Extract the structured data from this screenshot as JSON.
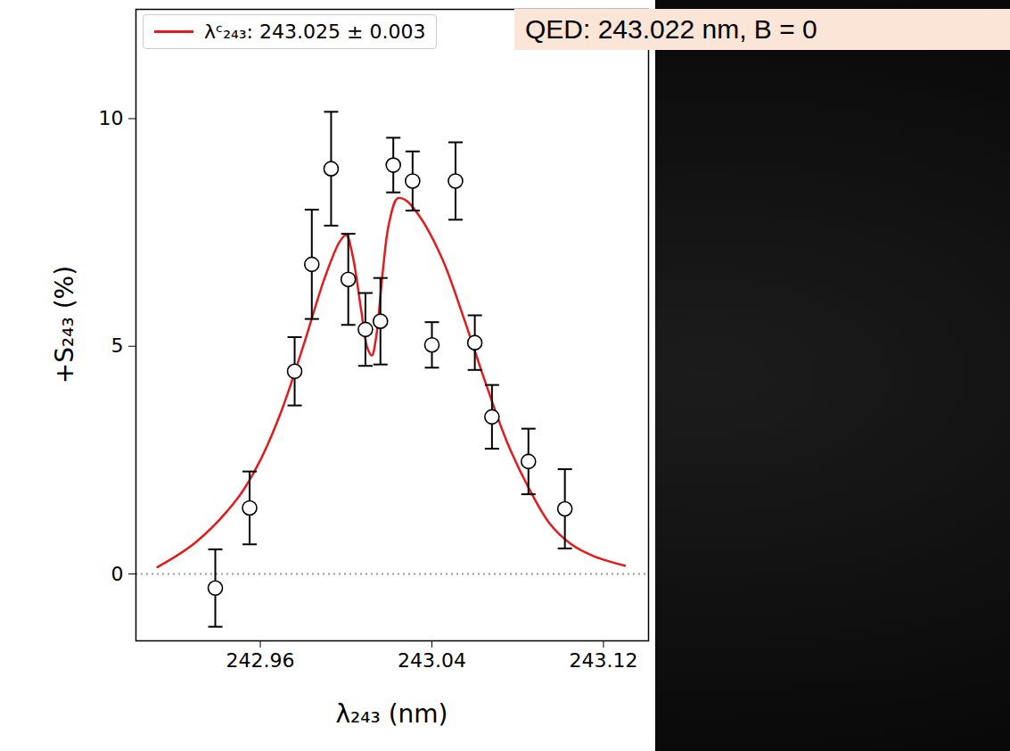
{
  "chart_data": {
    "type": "scatter",
    "x_label": "λ₂₄₃ (nm)",
    "y_label": "+S₂₄₃ (%)",
    "xlim": [
      242.902,
      243.141
    ],
    "ylim": [
      -1.47,
      12.4
    ],
    "xticks": [
      242.96,
      243.04,
      243.12
    ],
    "yticks": [
      0,
      5,
      10
    ],
    "legend": "upper left",
    "annotations": [
      {
        "text": "QED: 243.022 nm, B = 0"
      }
    ],
    "reference_line": {
      "y": 0,
      "color": "#999999",
      "line_style": "dotted"
    },
    "series": [
      {
        "name": "λᶜ₂₄₃: 243.025 ± 0.003",
        "type": "line",
        "color": "#e41a1c",
        "x": [
          242.912,
          242.93,
          242.95,
          242.96,
          242.97,
          242.98,
          242.99,
          242.997,
          243.0,
          243.003,
          243.007,
          243.01,
          243.012,
          243.014,
          243.017,
          243.02,
          243.024,
          243.028,
          243.035,
          243.045,
          243.055,
          243.065,
          243.075,
          243.085,
          243.095,
          243.105,
          243.115,
          243.13
        ],
        "values": [
          0.15,
          0.7,
          1.7,
          2.5,
          3.6,
          5.0,
          6.5,
          7.3,
          7.45,
          7.0,
          5.8,
          4.95,
          4.8,
          5.2,
          6.6,
          7.7,
          8.25,
          8.2,
          7.8,
          6.9,
          5.6,
          4.2,
          2.9,
          1.9,
          1.1,
          0.65,
          0.4,
          0.18
        ]
      },
      {
        "type": "scatter",
        "marker": "open_circle",
        "color": "#000000",
        "x": [
          242.939,
          242.955,
          242.976,
          242.984,
          242.993,
          243.001,
          243.009,
          243.016,
          243.022,
          243.031,
          243.04,
          243.051,
          243.06,
          243.068,
          243.085,
          243.102
        ],
        "values": [
          -0.31,
          1.45,
          4.45,
          6.8,
          8.9,
          6.47,
          5.37,
          5.55,
          8.98,
          8.63,
          5.03,
          8.63,
          5.08,
          3.45,
          2.47,
          1.43
        ],
        "errors": [
          0.85,
          0.8,
          0.75,
          1.2,
          1.25,
          1.0,
          0.8,
          0.95,
          0.6,
          0.65,
          0.5,
          0.85,
          0.6,
          0.7,
          0.72,
          0.87
        ]
      }
    ]
  }
}
